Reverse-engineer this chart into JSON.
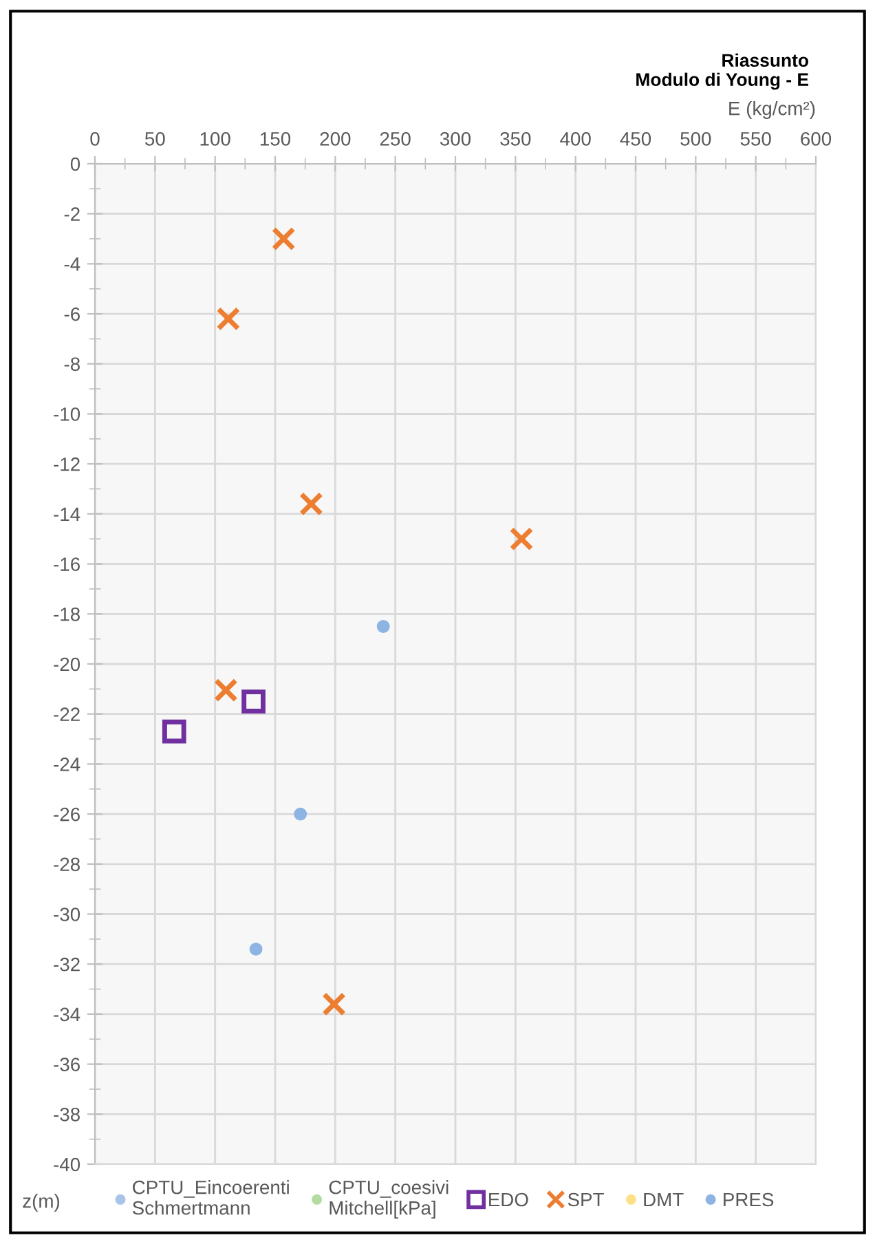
{
  "chart_data": {
    "type": "scatter",
    "title": "Riassunto",
    "subtitle": "Modulo di Young - E",
    "xlabel": "E (kg/cm²)",
    "ylabel": "z(m)",
    "xlim": [
      0,
      600
    ],
    "xticks": [
      0,
      50,
      100,
      150,
      200,
      250,
      300,
      350,
      400,
      450,
      500,
      550,
      600
    ],
    "ylim": [
      -40,
      0
    ],
    "yticks": [
      0,
      -2,
      -4,
      -6,
      -8,
      -10,
      -12,
      -14,
      -16,
      -18,
      -20,
      -22,
      -24,
      -26,
      -28,
      -30,
      -32,
      -34,
      -36,
      -38,
      -40
    ],
    "grid": true,
    "legend": "bottom",
    "series": [
      {
        "name": "CPTU_Eincoerenti Schmertmann",
        "color": "#a9c4e8",
        "marker": "circle"
      },
      {
        "name": "CPTU_coesivi Mitchell[kPa]",
        "color": "#b5dca0",
        "marker": "circle"
      },
      {
        "name": "EDO",
        "color": "#7030a0",
        "marker": "square",
        "x": [
          132,
          66
        ],
        "values": [
          -21.5,
          -22.7
        ]
      },
      {
        "name": "SPT",
        "color": "#ed7d31",
        "marker": "cross",
        "x": [
          157,
          111,
          180,
          355,
          109,
          199
        ],
        "values": [
          -3.0,
          -6.2,
          -13.6,
          -15.0,
          -21.05,
          -33.6
        ]
      },
      {
        "name": "DMT",
        "color": "#ffe08a",
        "marker": "circle"
      },
      {
        "name": "PRES",
        "color": "#8db4e2",
        "marker": "circle",
        "x": [
          240,
          171,
          134
        ],
        "values": [
          -18.5,
          -26.0,
          -31.4
        ]
      }
    ]
  }
}
